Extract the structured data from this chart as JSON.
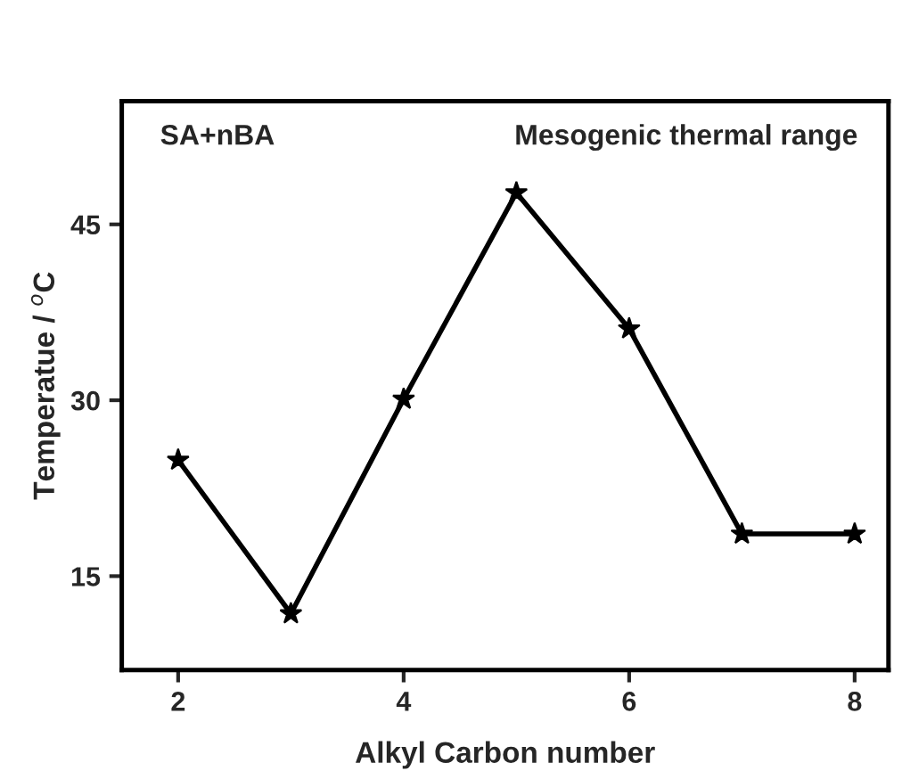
{
  "chart_data": {
    "type": "line",
    "xlabel": "Alkyl Carbon number",
    "ylabel": "Temperatue / $^{o}$C",
    "annotations": [
      "SA+nBA",
      "Mesogenic thermal range"
    ],
    "x": [
      2,
      3,
      4,
      5,
      6,
      7,
      8
    ],
    "series": [
      {
        "color": "#000000",
        "values": [
          24.9,
          11.8,
          30.1,
          47.7,
          36.1,
          18.6,
          18.6
        ]
      }
    ],
    "xlim": [
      1.5,
      8.3
    ],
    "ylim": [
      7,
      55.5
    ],
    "xticks": [
      2,
      4,
      6,
      8
    ],
    "yticks": [
      15,
      30,
      45
    ],
    "marker": "star",
    "line_style": "solid",
    "grid": false,
    "legend": false
  }
}
